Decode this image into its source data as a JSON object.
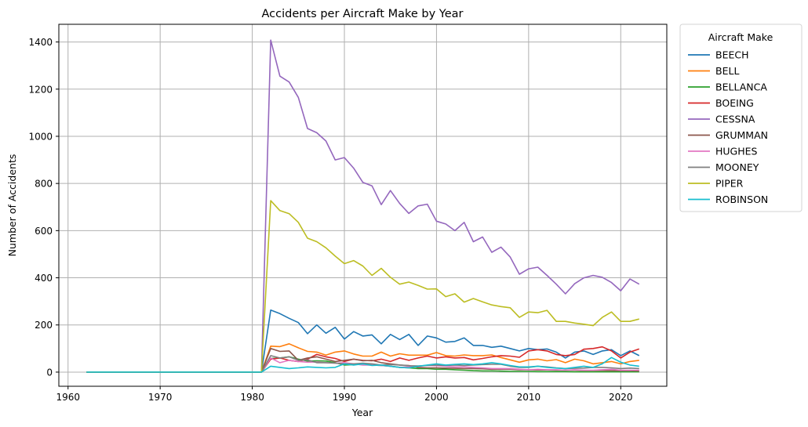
{
  "chart_data": {
    "type": "line",
    "title": "Accidents per Aircraft Make by Year",
    "xlabel": "Year",
    "ylabel": "Number of Accidents",
    "xlim": [
      1959,
      2025
    ],
    "ylim": [
      -60,
      1475
    ],
    "xticks": [
      1960,
      1970,
      1980,
      1990,
      2000,
      2010,
      2020
    ],
    "yticks": [
      0,
      200,
      400,
      600,
      800,
      1000,
      1200,
      1400
    ],
    "grid": true,
    "legend": {
      "title": "Aircraft Make",
      "placement": "outside-top-right"
    },
    "x": [
      1962,
      1981,
      1982,
      1983,
      1984,
      1985,
      1986,
      1987,
      1988,
      1989,
      1990,
      1991,
      1992,
      1993,
      1994,
      1995,
      1996,
      1997,
      1998,
      1999,
      2000,
      2001,
      2002,
      2003,
      2004,
      2005,
      2006,
      2007,
      2008,
      2009,
      2010,
      2011,
      2012,
      2013,
      2014,
      2015,
      2016,
      2017,
      2018,
      2019,
      2020,
      2021,
      2022
    ],
    "series": [
      {
        "name": "BEECH",
        "color": "#1f77b4",
        "values": [
          0,
          0,
          263,
          248,
          228,
          210,
          163,
          200,
          165,
          190,
          140,
          172,
          153,
          158,
          120,
          160,
          138,
          160,
          113,
          153,
          145,
          127,
          130,
          145,
          113,
          113,
          105,
          110,
          100,
          90,
          100,
          95,
          98,
          85,
          60,
          85,
          90,
          75,
          90,
          95,
          70,
          90,
          70
        ]
      },
      {
        "name": "BELL",
        "color": "#ff7f0e",
        "values": [
          0,
          0,
          110,
          108,
          120,
          103,
          88,
          85,
          72,
          85,
          90,
          77,
          68,
          68,
          85,
          68,
          78,
          72,
          72,
          72,
          83,
          70,
          68,
          73,
          70,
          70,
          73,
          62,
          52,
          42,
          52,
          55,
          48,
          53,
          40,
          55,
          48,
          35,
          40,
          45,
          35,
          45,
          50
        ]
      },
      {
        "name": "BELLANCA",
        "color": "#2ca02c",
        "values": [
          0,
          0,
          58,
          60,
          65,
          55,
          47,
          48,
          47,
          40,
          30,
          32,
          35,
          30,
          28,
          25,
          20,
          18,
          15,
          15,
          12,
          12,
          10,
          8,
          6,
          5,
          5,
          4,
          3,
          3,
          3,
          2,
          2,
          2,
          2,
          1,
          1,
          1,
          1,
          1,
          1,
          1,
          1
        ]
      },
      {
        "name": "BOEING",
        "color": "#d62728",
        "values": [
          0,
          0,
          55,
          60,
          50,
          45,
          55,
          75,
          65,
          58,
          45,
          55,
          50,
          48,
          55,
          45,
          60,
          50,
          60,
          68,
          60,
          65,
          60,
          62,
          52,
          58,
          65,
          70,
          68,
          63,
          90,
          95,
          90,
          75,
          70,
          75,
          97,
          100,
          107,
          90,
          60,
          85,
          98
        ]
      },
      {
        "name": "CESSNA",
        "color": "#9467bd",
        "values": [
          0,
          0,
          1408,
          1255,
          1230,
          1165,
          1033,
          1015,
          980,
          900,
          910,
          865,
          805,
          790,
          710,
          770,
          715,
          673,
          705,
          712,
          640,
          628,
          600,
          635,
          553,
          573,
          508,
          530,
          488,
          415,
          438,
          445,
          410,
          373,
          332,
          375,
          400,
          410,
          402,
          380,
          345,
          395,
          373
        ]
      },
      {
        "name": "GRUMMAN",
        "color": "#8c564b",
        "values": [
          0,
          0,
          100,
          88,
          90,
          50,
          60,
          65,
          55,
          45,
          50,
          55,
          48,
          50,
          40,
          35,
          30,
          28,
          20,
          18,
          18,
          17,
          16,
          15,
          15,
          14,
          12,
          12,
          12,
          10,
          10,
          9,
          9,
          8,
          8,
          8,
          7,
          7,
          7,
          6,
          6,
          6,
          5
        ]
      },
      {
        "name": "HUGHES",
        "color": "#e377c2",
        "values": [
          0,
          0,
          60,
          40,
          50,
          45,
          42,
          43,
          40,
          38,
          40,
          35,
          30,
          30,
          28,
          25,
          20,
          22,
          25,
          28,
          27,
          25,
          22,
          22,
          20,
          18,
          15,
          15,
          15,
          12,
          10,
          12,
          10,
          10,
          8,
          10,
          8,
          8,
          10,
          12,
          8,
          8,
          8
        ]
      },
      {
        "name": "MOONEY",
        "color": "#7f7f7f",
        "values": [
          0,
          0,
          70,
          60,
          65,
          50,
          52,
          40,
          40,
          38,
          35,
          35,
          38,
          35,
          30,
          32,
          30,
          27,
          26,
          28,
          30,
          28,
          30,
          28,
          30,
          32,
          33,
          33,
          25,
          20,
          20,
          25,
          22,
          18,
          15,
          16,
          17,
          20,
          20,
          18,
          15,
          17,
          15
        ]
      },
      {
        "name": "PIPER",
        "color": "#bcbd22",
        "values": [
          0,
          0,
          727,
          685,
          672,
          635,
          568,
          553,
          527,
          492,
          460,
          473,
          450,
          410,
          440,
          402,
          373,
          382,
          368,
          352,
          353,
          320,
          332,
          297,
          312,
          298,
          285,
          278,
          273,
          232,
          255,
          252,
          262,
          215,
          215,
          208,
          203,
          197,
          232,
          255,
          215,
          215,
          225
        ]
      },
      {
        "name": "ROBINSON",
        "color": "#17becf",
        "values": [
          0,
          0,
          25,
          20,
          15,
          18,
          22,
          20,
          18,
          20,
          35,
          30,
          35,
          28,
          30,
          25,
          20,
          18,
          25,
          30,
          35,
          30,
          33,
          35,
          32,
          35,
          40,
          35,
          28,
          22,
          22,
          25,
          20,
          17,
          15,
          20,
          25,
          20,
          35,
          62,
          42,
          30,
          25
        ]
      }
    ]
  }
}
